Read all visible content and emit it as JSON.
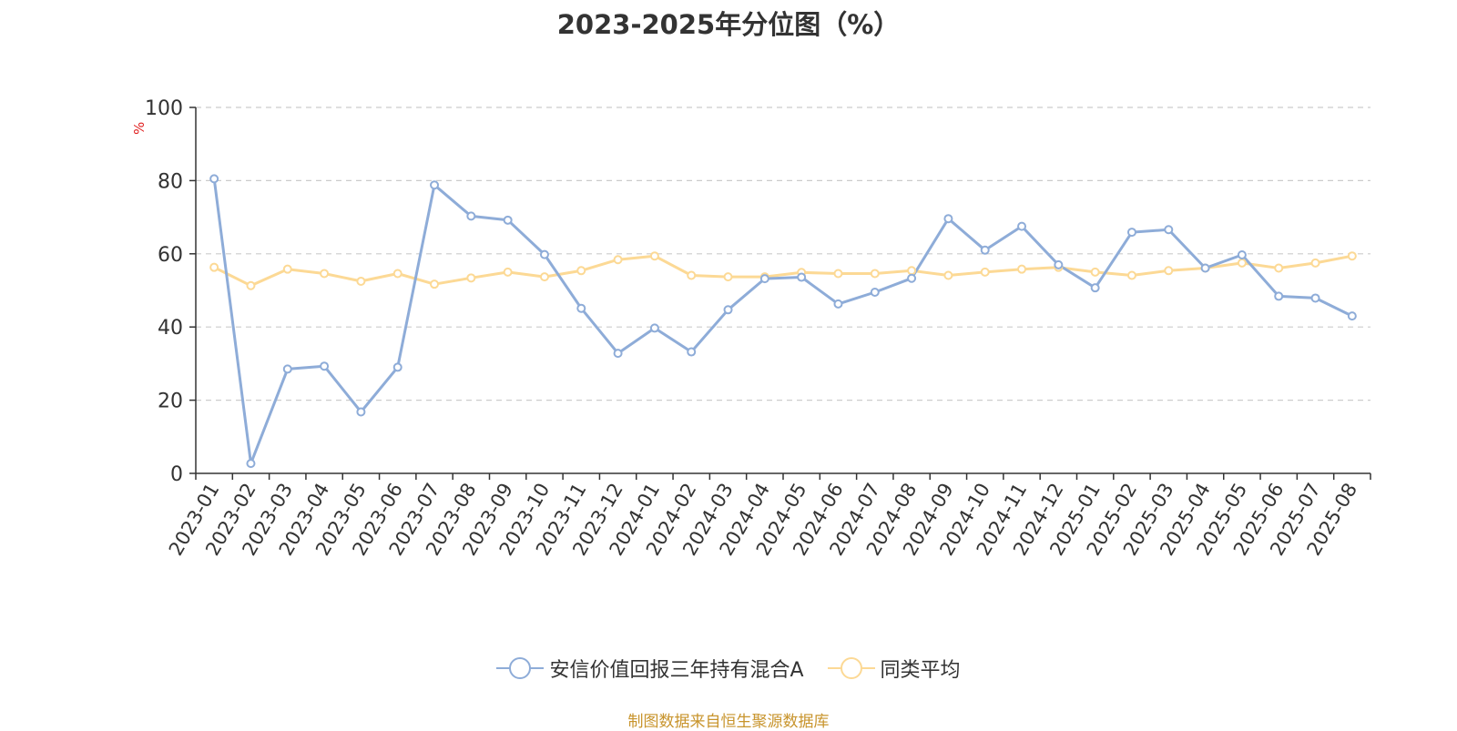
{
  "chart_data": {
    "type": "line",
    "title": "2023-2025年分位图（%）",
    "ylabel": "%",
    "xlabel": "",
    "ylim": [
      0,
      100
    ],
    "yticks": [
      0,
      20,
      40,
      60,
      80,
      100
    ],
    "grid": true,
    "legend_position": "bottom",
    "categories": [
      "2023-01",
      "2023-02",
      "2023-03",
      "2023-04",
      "2023-05",
      "2023-06",
      "2023-07",
      "2023-08",
      "2023-09",
      "2023-10",
      "2023-11",
      "2023-12",
      "2024-01",
      "2024-02",
      "2024-03",
      "2024-04",
      "2024-05",
      "2024-06",
      "2024-07",
      "2024-08",
      "2024-09",
      "2024-10",
      "2024-11",
      "2024-12",
      "2025-01",
      "2025-02",
      "2025-03",
      "2025-04",
      "2025-05",
      "2025-06",
      "2025-07",
      "2025-08"
    ],
    "series": [
      {
        "name": "安信价值回报三年持有混合A",
        "color": "#8eacd8",
        "values": [
          80.5,
          2.7,
          28.5,
          29.3,
          16.8,
          29.0,
          78.8,
          70.3,
          69.2,
          59.8,
          45.1,
          32.8,
          39.7,
          33.2,
          44.7,
          53.2,
          53.6,
          46.3,
          49.5,
          53.3,
          69.6,
          61.0,
          67.5,
          57.0,
          50.7,
          65.9,
          66.6,
          56.1,
          59.7,
          48.4,
          47.9,
          43.0
        ]
      },
      {
        "name": "同类平均",
        "color": "#fcd995",
        "values": [
          56.3,
          51.3,
          55.8,
          54.6,
          52.5,
          54.6,
          51.7,
          53.4,
          55.0,
          53.7,
          55.4,
          58.4,
          59.4,
          54.1,
          53.7,
          53.7,
          54.9,
          54.6,
          54.6,
          55.4,
          54.1,
          55.0,
          55.8,
          56.3,
          55.0,
          54.1,
          55.4,
          56.1,
          57.5,
          56.1,
          57.5,
          59.4
        ]
      }
    ]
  },
  "source_text": "制图数据来自恒生聚源数据库"
}
